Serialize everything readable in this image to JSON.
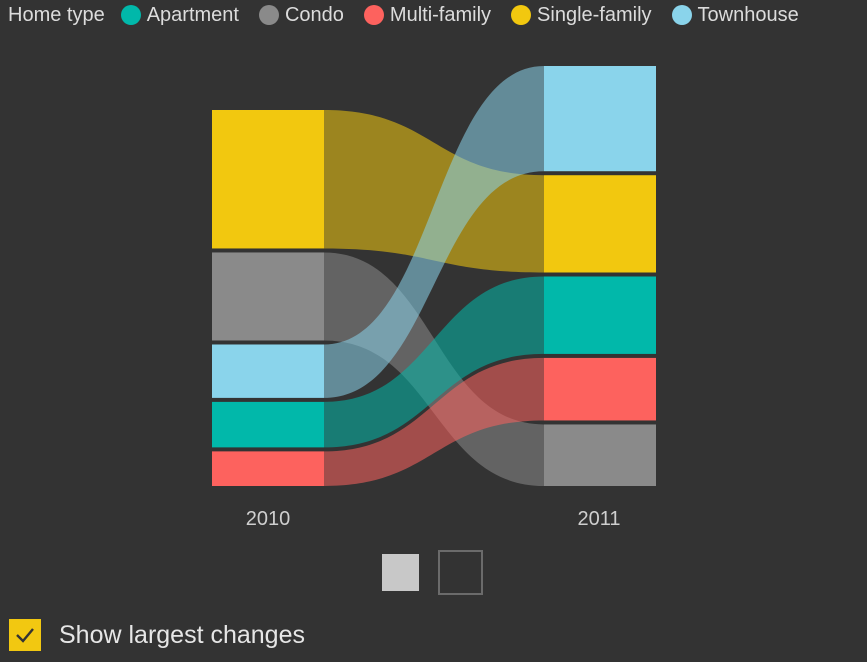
{
  "legend": {
    "title": "Home type",
    "items": [
      {
        "label": "Apartment",
        "color": "#01b8aa"
      },
      {
        "label": "Condo",
        "color": "#8a8a8a"
      },
      {
        "label": "Multi-family",
        "color": "#fd625e"
      },
      {
        "label": "Single-family",
        "color": "#f2c80f"
      },
      {
        "label": "Townhouse",
        "color": "#8ad4eb"
      }
    ]
  },
  "chart_data": {
    "type": "sankey",
    "x": [
      "2010",
      "2011"
    ],
    "colors": {
      "Apartment": "#01b8aa",
      "Condo": "#8a8a8a",
      "Multi-family": "#fd625e",
      "Single-family": "#f2c80f",
      "Townhouse": "#8ad4eb"
    },
    "stacks": {
      "2010": [
        {
          "name": "Single-family",
          "value": 140
        },
        {
          "name": "Condo",
          "value": 89
        },
        {
          "name": "Townhouse",
          "value": 54
        },
        {
          "name": "Apartment",
          "value": 46
        },
        {
          "name": "Multi-family",
          "value": 35
        }
      ],
      "2011": [
        {
          "name": "Townhouse",
          "value": 106
        },
        {
          "name": "Single-family",
          "value": 98
        },
        {
          "name": "Apartment",
          "value": 78
        },
        {
          "name": "Multi-family",
          "value": 63
        },
        {
          "name": "Condo",
          "value": 62
        }
      ]
    },
    "flows": [
      {
        "name": "Single-family",
        "from": 140,
        "to": 98
      },
      {
        "name": "Condo",
        "from": 89,
        "to": 62
      },
      {
        "name": "Townhouse",
        "from": 54,
        "to": 106
      },
      {
        "name": "Apartment",
        "from": 46,
        "to": 78
      },
      {
        "name": "Multi-family",
        "from": 35,
        "to": 63
      }
    ]
  },
  "pager": {
    "pages": 2,
    "current": 2
  },
  "toggle": {
    "label": "Show largest changes",
    "checked": true
  }
}
